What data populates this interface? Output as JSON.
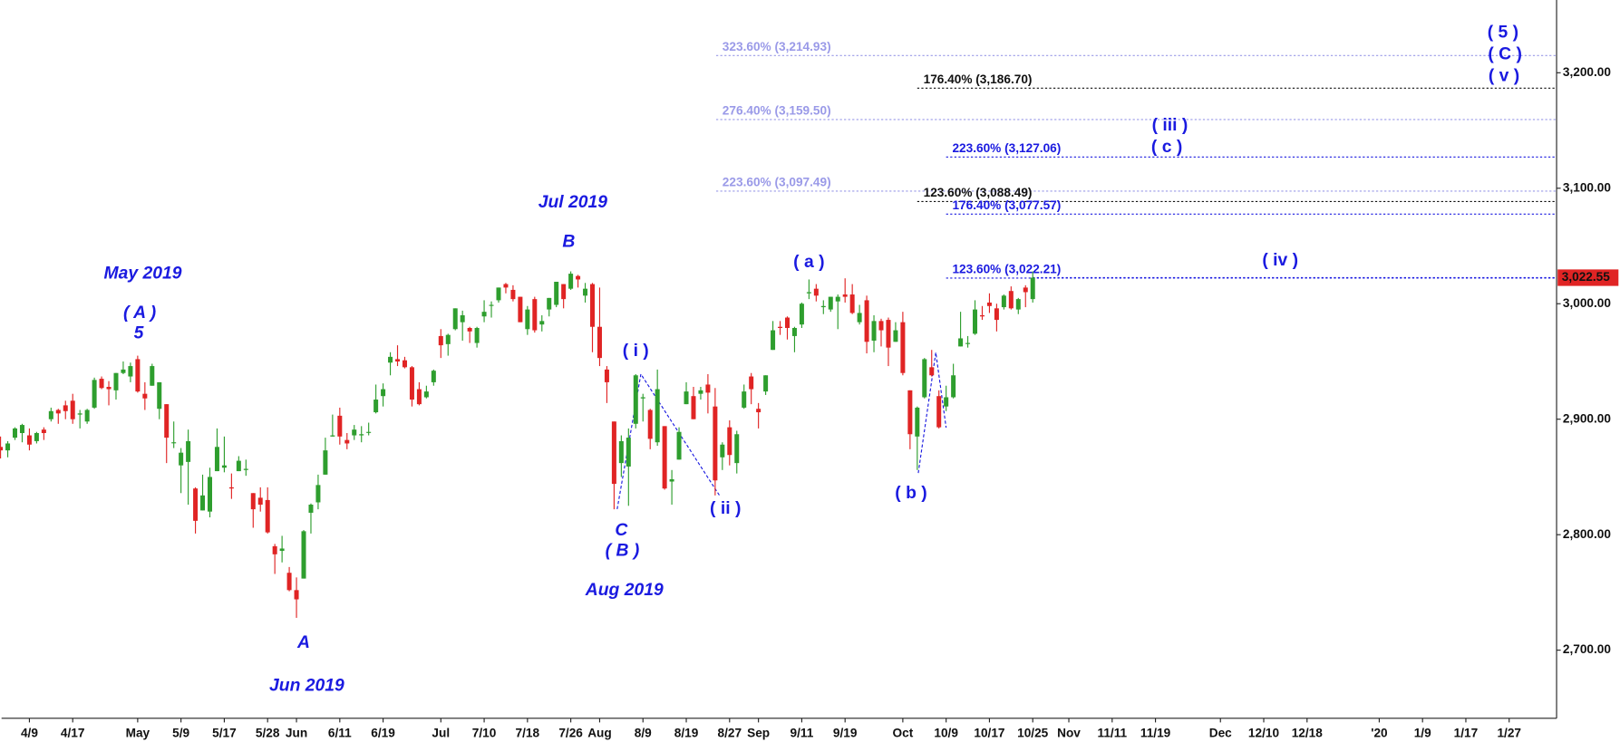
{
  "chart_data": {
    "type": "candlestick",
    "up_color": "#2e9e2e",
    "down_color": "#e02424",
    "xlim": [
      0.14,
      215.57
    ],
    "xticks": [
      {
        "value": 4,
        "label": "4/9"
      },
      {
        "value": 10,
        "label": "4/17"
      },
      {
        "value": 19,
        "label": "May"
      },
      {
        "value": 25,
        "label": "5/9"
      },
      {
        "value": 31,
        "label": "5/17"
      },
      {
        "value": 37,
        "label": "5/28"
      },
      {
        "value": 41,
        "label": "Jun"
      },
      {
        "value": 47,
        "label": "6/11"
      },
      {
        "value": 53,
        "label": "6/19"
      },
      {
        "value": 61,
        "label": "Jul"
      },
      {
        "value": 67,
        "label": "7/10"
      },
      {
        "value": 73,
        "label": "7/18"
      },
      {
        "value": 79,
        "label": "7/26"
      },
      {
        "value": 83,
        "label": "Aug"
      },
      {
        "value": 89,
        "label": "8/9"
      },
      {
        "value": 95,
        "label": "8/19"
      },
      {
        "value": 101,
        "label": "8/27"
      },
      {
        "value": 105,
        "label": "Sep"
      },
      {
        "value": 111,
        "label": "9/11"
      },
      {
        "value": 117,
        "label": "9/19"
      },
      {
        "value": 125,
        "label": "Oct"
      },
      {
        "value": 131,
        "label": "10/9"
      },
      {
        "value": 137,
        "label": "10/17"
      },
      {
        "value": 143,
        "label": "10/25"
      },
      {
        "value": 148,
        "label": "Nov"
      },
      {
        "value": 154,
        "label": "11/11"
      },
      {
        "value": 160,
        "label": "11/19"
      },
      {
        "value": 169,
        "label": "Dec"
      },
      {
        "value": 175,
        "label": "12/10"
      },
      {
        "value": 181,
        "label": "12/18"
      },
      {
        "value": 191,
        "label": "'20"
      },
      {
        "value": 197,
        "label": "1/9"
      },
      {
        "value": 203,
        "label": "1/17"
      },
      {
        "value": 209,
        "label": "1/27"
      }
    ],
    "ylim": [
      2641,
      3263
    ],
    "yticks": [
      {
        "value": 2700,
        "label": "2,700.00"
      },
      {
        "value": 2800,
        "label": "2,800.00"
      },
      {
        "value": 2900,
        "label": "2,900.00"
      },
      {
        "value": 3000,
        "label": "3,000.00"
      },
      {
        "value": 3100,
        "label": "3,100.00"
      },
      {
        "value": 3200,
        "label": "3,200.00"
      }
    ],
    "last_price": {
      "value": 3022.55,
      "label": "3,022.55",
      "color": "#e02424"
    },
    "levels": [
      {
        "label": "323.60% (3,214.93)",
        "value": 3214.93,
        "color": "#9a9ae8"
      },
      {
        "label": "276.40% (3,159.50)",
        "value": 3159.5,
        "color": "#9a9ae8"
      },
      {
        "label": "223.60% (3,097.49)",
        "value": 3097.49,
        "color": "#9a9ae8"
      },
      {
        "label": "176.40% (3,186.70)",
        "value": 3186.7,
        "color": "#111111"
      },
      {
        "label": "123.60% (3,088.49)",
        "value": 3088.49,
        "color": "#111111"
      },
      {
        "label": "223.60% (3,127.06)",
        "value": 3127.06,
        "color": "#1a1ae0"
      },
      {
        "label": "176.40% (3,077.57)",
        "value": 3077.57,
        "color": "#1a1ae0"
      },
      {
        "label": "123.60% (3,022.21)",
        "value": 3022.21,
        "color": "#1a1ae0"
      }
    ],
    "annotations": [
      "May 2019",
      "( A )",
      "5",
      "A",
      "Jun 2019",
      "Jul 2019",
      "B",
      "( i )",
      "C",
      "( B )",
      "Aug 2019",
      "( ii )",
      "( a )",
      "( b )",
      "( iv )",
      "( iii )",
      "( c )",
      "( 5 )",
      "( C )",
      "( v )"
    ],
    "candles": [
      [
        2876,
        2885,
        2866,
        2873
      ],
      [
        2873,
        2881,
        2867,
        2879
      ],
      [
        2884,
        2893,
        2882,
        2892
      ],
      [
        2888,
        2896,
        2880,
        2895
      ],
      [
        2886,
        2892,
        2873,
        2878
      ],
      [
        2881,
        2889,
        2879,
        2888
      ],
      [
        2891,
        2893,
        2882,
        2888
      ],
      [
        2900,
        2910,
        2898,
        2907
      ],
      [
        2908,
        2909,
        2896,
        2905
      ],
      [
        2912,
        2916,
        2900,
        2907
      ],
      [
        2916,
        2922,
        2896,
        2900
      ],
      [
        2904,
        2908,
        2892,
        2905
      ],
      [
        2898,
        2909,
        2896,
        2908
      ],
      [
        2910,
        2936,
        2909,
        2934
      ],
      [
        2935,
        2937,
        2926,
        2927
      ],
      [
        2928,
        2933,
        2912,
        2926
      ],
      [
        2925,
        2940,
        2917,
        2940
      ],
      [
        2940,
        2950,
        2939,
        2943
      ],
      [
        2937,
        2949,
        2932,
        2946
      ],
      [
        2952,
        2955,
        2923,
        2924
      ],
      [
        2922,
        2932,
        2908,
        2918
      ],
      [
        2929,
        2948,
        2929,
        2946
      ],
      [
        2909,
        2932,
        2900,
        2932
      ],
      [
        2913,
        2913,
        2862,
        2884
      ],
      [
        2880,
        2898,
        2875,
        2880
      ],
      [
        2860,
        2875,
        2836,
        2871
      ],
      [
        2863,
        2891,
        2826,
        2881
      ],
      [
        2840,
        2841,
        2801,
        2812
      ],
      [
        2821,
        2852,
        2821,
        2834
      ],
      [
        2820,
        2858,
        2815,
        2850
      ],
      [
        2855,
        2892,
        2855,
        2876
      ],
      [
        2858,
        2885,
        2854,
        2860
      ],
      [
        2841,
        2853,
        2831,
        2840
      ],
      [
        2855,
        2868,
        2855,
        2864
      ],
      [
        2856,
        2865,
        2851,
        2857
      ],
      [
        2836,
        2836,
        2806,
        2822
      ],
      [
        2832,
        2841,
        2820,
        2826
      ],
      [
        2830,
        2841,
        2801,
        2802
      ],
      [
        2790,
        2792,
        2766,
        2783
      ],
      [
        2786,
        2799,
        2776,
        2788
      ],
      [
        2767,
        2772,
        2751,
        2752
      ],
      [
        2752,
        2763,
        2728,
        2744
      ],
      [
        2762,
        2804,
        2762,
        2803
      ],
      [
        2819,
        2827,
        2801,
        2826
      ],
      [
        2828,
        2852,
        2822,
        2843
      ],
      [
        2852,
        2884,
        2852,
        2873
      ],
      [
        2885,
        2904,
        2885,
        2886
      ],
      [
        2903,
        2910,
        2878,
        2885
      ],
      [
        2882,
        2888,
        2874,
        2879
      ],
      [
        2886,
        2895,
        2882,
        2891
      ],
      [
        2886,
        2894,
        2880,
        2887
      ],
      [
        2889,
        2897,
        2886,
        2889
      ],
      [
        2906,
        2930,
        2905,
        2917
      ],
      [
        2920,
        2931,
        2911,
        2926
      ],
      [
        2949,
        2958,
        2938,
        2954
      ],
      [
        2952,
        2964,
        2946,
        2950
      ],
      [
        2951,
        2954,
        2944,
        2945
      ],
      [
        2945,
        2946,
        2911,
        2917
      ],
      [
        2926,
        2932,
        2912,
        2913
      ],
      [
        2919,
        2929,
        2918,
        2924
      ],
      [
        2932,
        2943,
        2929,
        2942
      ],
      [
        2972,
        2978,
        2953,
        2964
      ],
      [
        2965,
        2974,
        2955,
        2973
      ],
      [
        2978,
        2996,
        2977,
        2996
      ],
      [
        2984,
        2994,
        2968,
        2990
      ],
      [
        2979,
        2980,
        2966,
        2976
      ],
      [
        2966,
        2980,
        2962,
        2979
      ],
      [
        2989,
        3003,
        2984,
        2993
      ],
      [
        2999,
        3002,
        2988,
        2999
      ],
      [
        3003,
        3014,
        3001,
        3014
      ],
      [
        3017,
        3018,
        3009,
        3014
      ],
      [
        3012,
        3016,
        3002,
        3004
      ],
      [
        3006,
        3006,
        2984,
        2984
      ],
      [
        2978,
        2998,
        2973,
        2995
      ],
      [
        3004,
        3006,
        2975,
        2977
      ],
      [
        2982,
        2990,
        2976,
        2985
      ],
      [
        2995,
        3005,
        2989,
        3005
      ],
      [
        2999,
        3019,
        2997,
        3019
      ],
      [
        3017,
        3017,
        2996,
        3004
      ],
      [
        3013,
        3028,
        3012,
        3026
      ],
      [
        3024,
        3025,
        3014,
        3021
      ],
      [
        3007,
        3018,
        3001,
        3013
      ],
      [
        3017,
        3018,
        2958,
        2980
      ],
      [
        2980,
        3014,
        2946,
        2953
      ],
      [
        2943,
        2946,
        2914,
        2932
      ],
      [
        2898,
        2898,
        2822,
        2844
      ],
      [
        2862,
        2886,
        2850,
        2881
      ],
      [
        2859,
        2892,
        2825,
        2884
      ],
      [
        2896,
        2939,
        2892,
        2938
      ],
      [
        2918,
        2922,
        2898,
        2919
      ],
      [
        2908,
        2909,
        2874,
        2883
      ],
      [
        2880,
        2943,
        2877,
        2926
      ],
      [
        2894,
        2894,
        2839,
        2840
      ],
      [
        2846,
        2856,
        2826,
        2848
      ],
      [
        2865,
        2893,
        2865,
        2889
      ],
      [
        2913,
        2932,
        2913,
        2924
      ],
      [
        2920,
        2928,
        2900,
        2900
      ],
      [
        2922,
        2928,
        2917,
        2925
      ],
      [
        2930,
        2939,
        2905,
        2923
      ],
      [
        2911,
        2927,
        2834,
        2847
      ],
      [
        2867,
        2880,
        2856,
        2878
      ],
      [
        2893,
        2899,
        2860,
        2869
      ],
      [
        2862,
        2890,
        2853,
        2887
      ],
      [
        2910,
        2930,
        2909,
        2924
      ],
      [
        2937,
        2940,
        2913,
        2926
      ],
      [
        2909,
        2914,
        2892,
        2906
      ],
      [
        2924,
        2938,
        2921,
        2938
      ],
      [
        2960,
        2985,
        2960,
        2977
      ],
      [
        2980,
        2985,
        2973,
        2979
      ],
      [
        2988,
        2989,
        2969,
        2979
      ],
      [
        2972,
        2980,
        2958,
        2979
      ],
      [
        2982,
        3001,
        2979,
        3000
      ],
      [
        3009,
        3021,
        3004,
        3010
      ],
      [
        3013,
        3017,
        3002,
        3007
      ],
      [
        2997,
        3003,
        2991,
        2998
      ],
      [
        2995,
        3006,
        2993,
        3006
      ],
      [
        3002,
        3008,
        2978,
        3006
      ],
      [
        3008,
        3022,
        3001,
        3006
      ],
      [
        3008,
        3017,
        2991,
        2992
      ],
      [
        2984,
        2999,
        2982,
        2992
      ],
      [
        3003,
        3007,
        2957,
        2967
      ],
      [
        2968,
        2990,
        2958,
        2985
      ],
      [
        2985,
        2987,
        2963,
        2977
      ],
      [
        2986,
        2988,
        2946,
        2962
      ],
      [
        2967,
        2984,
        2967,
        2977
      ],
      [
        2984,
        2993,
        2938,
        2940
      ],
      [
        2925,
        2925,
        2874,
        2887
      ],
      [
        2885,
        2911,
        2856,
        2910
      ],
      [
        2919,
        2953,
        2918,
        2952
      ],
      [
        2945,
        2960,
        2937,
        2938
      ],
      [
        2920,
        2925,
        2892,
        2893
      ],
      [
        2911,
        2929,
        2907,
        2919
      ],
      [
        2919,
        2948,
        2918,
        2938
      ],
      [
        2963,
        2993,
        2963,
        2970
      ],
      [
        2966,
        2972,
        2962,
        2966
      ],
      [
        2974,
        3003,
        2973,
        2995
      ],
      [
        2990,
        2998,
        2986,
        2989
      ],
      [
        3001,
        3009,
        2992,
        2998
      ],
      [
        2996,
        3000,
        2976,
        2986
      ],
      [
        2997,
        3008,
        2995,
        3007
      ],
      [
        3011,
        3015,
        2995,
        2996
      ],
      [
        2995,
        3005,
        2991,
        3004
      ],
      [
        3014,
        3016,
        2997,
        3010
      ],
      [
        3004,
        3028,
        3001,
        3022.55
      ]
    ]
  }
}
